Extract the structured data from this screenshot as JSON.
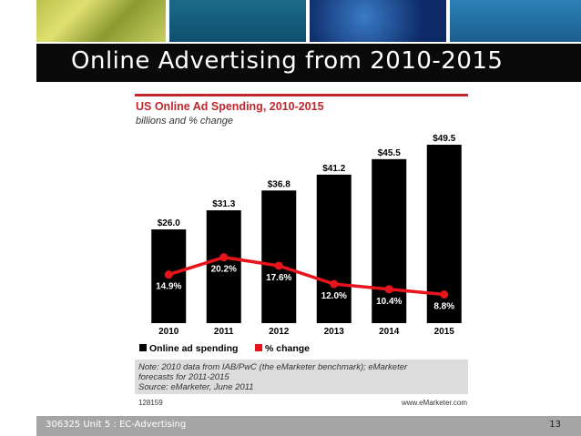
{
  "slide": {
    "title": "Online Advertising from 2010-2015",
    "footer": "306325 Unit 5 : EC-Advertising",
    "page_number": "13"
  },
  "colors": {
    "title_bar": "#0a0a0a",
    "footer_bar": "#a5a5a5",
    "chart_title": "#c0272d",
    "bar": "#000000",
    "line": "#e8141b"
  },
  "chart_data": {
    "type": "bar",
    "title": "US Online Ad Spending, 2010-2015",
    "subtitle": "billions and % change",
    "categories": [
      "2010",
      "2011",
      "2012",
      "2013",
      "2014",
      "2015"
    ],
    "series": [
      {
        "name": "Online ad spending",
        "type": "bar",
        "values": [
          26.0,
          31.3,
          36.8,
          41.2,
          45.5,
          49.5
        ],
        "labels": [
          "$26.0",
          "$31.3",
          "$36.8",
          "$41.2",
          "$45.5",
          "$49.5"
        ]
      },
      {
        "name": "% change",
        "type": "line",
        "values": [
          14.9,
          20.2,
          17.6,
          12.0,
          10.4,
          8.8
        ],
        "labels": [
          "14.9%",
          "20.2%",
          "17.6%",
          "12.0%",
          "10.4%",
          "8.8%"
        ]
      }
    ],
    "legend_position": "bottom-left",
    "note_lines": [
      "Note: 2010 data from IAB/PwC (the eMarketer benchmark); eMarketer",
      "forecasts for 2011-2015",
      "Source: eMarketer, June 2011"
    ],
    "chart_id": "128159",
    "site": "www.eMarketer.com"
  }
}
